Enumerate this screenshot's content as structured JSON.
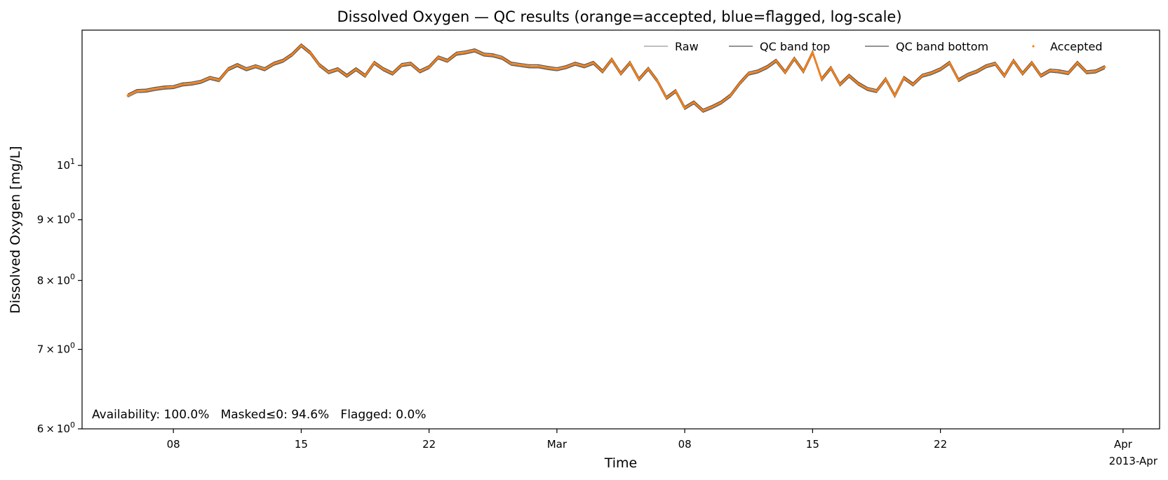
{
  "chart_data": {
    "type": "line",
    "title": "Dissolved Oxygen — QC results (orange=accepted, blue=flagged, log-scale)",
    "xlabel": "Time",
    "ylabel": "Dissolved Oxygen [mg/L]",
    "yscale": "log",
    "ylim": [
      6.0,
      13.0
    ],
    "xlim": [
      "2013-02-03T00:00",
      "2013-04-03T00:00"
    ],
    "x_ticks": [
      {
        "date": "2013-02-08",
        "label": "08"
      },
      {
        "date": "2013-02-15",
        "label": "15"
      },
      {
        "date": "2013-02-22",
        "label": "22"
      },
      {
        "date": "2013-03-01",
        "label": "Mar"
      },
      {
        "date": "2013-03-08",
        "label": "08"
      },
      {
        "date": "2013-03-15",
        "label": "15"
      },
      {
        "date": "2013-03-22",
        "label": "22"
      },
      {
        "date": "2013-04-01",
        "label": "Apr"
      }
    ],
    "x_offset_label": "2013-Apr",
    "y_ticks": [
      {
        "value": 6,
        "label_base": "6 × 10",
        "label_exp": "0"
      },
      {
        "value": 7,
        "label_base": "7 × 10",
        "label_exp": "0"
      },
      {
        "value": 8,
        "label_base": "8 × 10",
        "label_exp": "0"
      },
      {
        "value": 9,
        "label_base": "9 × 10",
        "label_exp": "0"
      },
      {
        "value": 10,
        "label_base": "10",
        "label_exp": "1"
      }
    ],
    "grid": false,
    "legend_placement": "top-right",
    "series": [
      {
        "name": "Raw",
        "color": "#555555",
        "style": "thin-line"
      },
      {
        "name": "QC band top",
        "color": "#555555",
        "style": "line"
      },
      {
        "name": "QC band bottom",
        "color": "#555555",
        "style": "line"
      },
      {
        "name": "Accepted",
        "color": "#ff7f0e",
        "style": "markers"
      }
    ],
    "data": {
      "x": [
        "2013-02-05T12:00",
        "2013-02-06T00:00",
        "2013-02-06T12:00",
        "2013-02-07T00:00",
        "2013-02-07T12:00",
        "2013-02-08T00:00",
        "2013-02-08T12:00",
        "2013-02-09T00:00",
        "2013-02-09T12:00",
        "2013-02-10T00:00",
        "2013-02-10T12:00",
        "2013-02-11T00:00",
        "2013-02-11T12:00",
        "2013-02-12T00:00",
        "2013-02-12T12:00",
        "2013-02-13T00:00",
        "2013-02-13T12:00",
        "2013-02-14T00:00",
        "2013-02-14T12:00",
        "2013-02-15T00:00",
        "2013-02-15T12:00",
        "2013-02-16T00:00",
        "2013-02-16T12:00",
        "2013-02-17T00:00",
        "2013-02-17T12:00",
        "2013-02-18T00:00",
        "2013-02-18T12:00",
        "2013-02-19T00:00",
        "2013-02-19T12:00",
        "2013-02-20T00:00",
        "2013-02-20T12:00",
        "2013-02-21T00:00",
        "2013-02-21T12:00",
        "2013-02-22T00:00",
        "2013-02-22T12:00",
        "2013-02-23T00:00",
        "2013-02-23T12:00",
        "2013-02-24T00:00",
        "2013-02-24T12:00",
        "2013-02-25T00:00",
        "2013-02-25T12:00",
        "2013-02-26T00:00",
        "2013-02-26T12:00",
        "2013-02-27T00:00",
        "2013-02-27T12:00",
        "2013-02-28T00:00",
        "2013-02-28T12:00",
        "2013-03-01T00:00",
        "2013-03-01T12:00",
        "2013-03-02T00:00",
        "2013-03-02T12:00",
        "2013-03-03T00:00",
        "2013-03-03T12:00",
        "2013-03-04T00:00",
        "2013-03-04T12:00",
        "2013-03-05T00:00",
        "2013-03-05T12:00",
        "2013-03-06T00:00",
        "2013-03-06T12:00",
        "2013-03-07T00:00",
        "2013-03-07T12:00",
        "2013-03-08T00:00",
        "2013-03-08T12:00",
        "2013-03-09T00:00",
        "2013-03-09T12:00",
        "2013-03-10T00:00",
        "2013-03-10T12:00",
        "2013-03-11T00:00",
        "2013-03-11T12:00",
        "2013-03-12T00:00",
        "2013-03-12T12:00",
        "2013-03-13T00:00",
        "2013-03-13T12:00",
        "2013-03-14T00:00",
        "2013-03-14T12:00",
        "2013-03-15T00:00",
        "2013-03-15T12:00",
        "2013-03-16T00:00",
        "2013-03-16T12:00",
        "2013-03-17T00:00",
        "2013-03-17T12:00",
        "2013-03-18T00:00",
        "2013-03-18T12:00",
        "2013-03-19T00:00",
        "2013-03-19T12:00",
        "2013-03-20T00:00",
        "2013-03-20T12:00",
        "2013-03-21T00:00",
        "2013-03-21T12:00",
        "2013-03-22T00:00",
        "2013-03-22T12:00",
        "2013-03-23T00:00",
        "2013-03-23T12:00",
        "2013-03-24T00:00",
        "2013-03-24T12:00",
        "2013-03-25T00:00",
        "2013-03-25T12:00",
        "2013-03-26T00:00",
        "2013-03-26T12:00",
        "2013-03-27T00:00",
        "2013-03-27T12:00",
        "2013-03-28T00:00",
        "2013-03-28T12:00",
        "2013-03-29T00:00",
        "2013-03-29T12:00",
        "2013-03-30T00:00",
        "2013-03-30T12:00",
        "2013-03-31T00:00"
      ],
      "accepted": [
        11.45,
        11.55,
        11.56,
        11.6,
        11.63,
        11.64,
        11.7,
        11.72,
        11.76,
        11.85,
        11.8,
        12.05,
        12.15,
        12.05,
        12.12,
        12.05,
        12.18,
        12.25,
        12.4,
        12.62,
        12.44,
        12.15,
        11.98,
        12.05,
        11.9,
        12.05,
        11.9,
        12.2,
        12.05,
        11.95,
        12.15,
        12.18,
        12.0,
        12.1,
        12.33,
        12.25,
        12.42,
        12.45,
        12.5,
        12.4,
        12.38,
        12.32,
        12.18,
        12.15,
        12.12,
        12.12,
        12.08,
        12.05,
        12.1,
        12.18,
        12.12,
        12.2,
        12.0,
        12.28,
        11.95,
        12.2,
        11.82,
        12.06,
        11.78,
        11.4,
        11.55,
        11.18,
        11.3,
        11.12,
        11.2,
        11.3,
        11.45,
        11.72,
        11.95,
        12.0,
        12.1,
        12.25,
        11.98,
        12.3,
        12.0,
        12.45,
        11.82,
        12.08,
        11.7,
        11.9,
        11.72,
        11.6,
        11.55,
        11.82,
        11.45,
        11.85,
        11.7,
        11.9,
        11.96,
        12.05,
        12.2,
        11.8,
        11.92,
        12.0,
        12.12,
        12.18,
        11.9,
        12.25,
        11.95,
        12.2,
        11.9,
        12.02,
        12.0,
        11.96,
        12.2,
        11.98,
        12.0,
        12.1
      ],
      "raw": [
        11.42,
        11.52,
        11.54,
        11.58,
        11.61,
        11.62,
        11.68,
        11.7,
        11.74,
        11.83,
        11.78,
        12.03,
        12.13,
        12.03,
        12.1,
        12.03,
        12.16,
        12.23,
        12.38,
        12.6,
        12.42,
        12.13,
        11.96,
        12.03,
        11.88,
        12.03,
        11.88,
        12.18,
        12.03,
        11.93,
        12.13,
        12.16,
        11.98,
        12.08,
        12.31,
        12.23,
        12.4,
        12.43,
        12.48,
        12.38,
        12.36,
        12.3,
        12.16,
        12.13,
        12.1,
        12.1,
        12.06,
        12.03,
        12.08,
        12.16,
        12.1,
        12.18,
        11.98,
        12.26,
        11.93,
        12.18,
        11.8,
        12.04,
        11.76,
        11.38,
        11.53,
        11.16,
        11.28,
        11.1,
        11.18,
        11.28,
        11.43,
        11.7,
        11.93,
        11.98,
        12.08,
        12.23,
        11.96,
        12.28,
        11.98,
        12.43,
        11.8,
        12.06,
        11.68,
        11.88,
        11.7,
        11.58,
        11.53,
        11.8,
        11.43,
        11.83,
        11.68,
        11.88,
        11.94,
        12.03,
        12.18,
        11.78,
        11.9,
        11.98,
        12.1,
        12.16,
        11.88,
        12.23,
        11.93,
        12.18,
        11.88,
        12.0,
        11.98,
        11.94,
        12.18,
        11.96,
        11.98,
        12.08
      ]
    },
    "annotations": {
      "stats_text": "Availability: 100.0%   Masked≤0: 94.6%   Flagged: 0.0%"
    }
  }
}
